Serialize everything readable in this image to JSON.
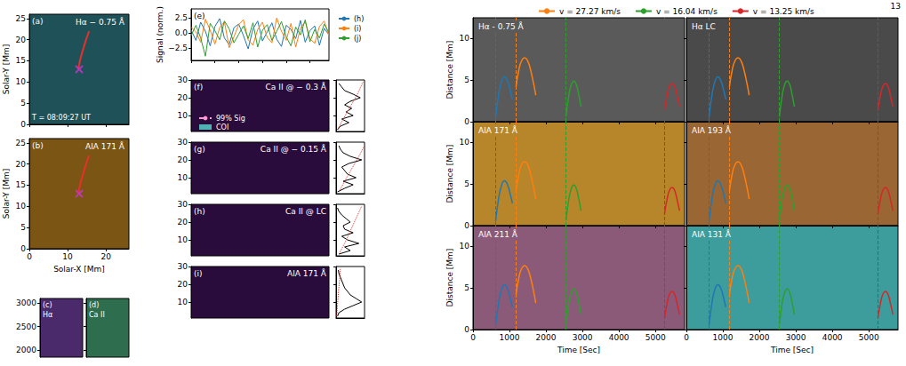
{
  "page_number": "13",
  "chart_data": [
    {
      "type": "image",
      "panel": "(a)",
      "title": "Hα − 0.75 Å",
      "annotation": "T = 08:09:27 UT",
      "ylabel": "Solar-Y [Mm]",
      "xlim": [
        0,
        26
      ],
      "ylim": [
        0,
        26
      ],
      "xticks": [
        0,
        10,
        20
      ],
      "yticks": [
        0,
        5,
        10,
        15,
        20,
        25
      ],
      "tick_labels": "y",
      "color": "#1f5258",
      "series": [
        {
          "type": "line",
          "color": "#e8302a",
          "x": [
            12.8,
            13.2,
            13.8,
            14.4,
            15.0,
            15.6
          ],
          "values": [
            13,
            15,
            17,
            18.8,
            20.5,
            22
          ]
        },
        {
          "type": "scatter",
          "marker": "x",
          "color": "#cc33cc",
          "x": [
            13
          ],
          "values": [
            13
          ]
        }
      ]
    },
    {
      "type": "image",
      "panel": "(b)",
      "title": "AIA 171 Å",
      "xlabel": "Solar-X [Mm]",
      "ylabel": "Solar-Y [Mm]",
      "xlim": [
        0,
        26
      ],
      "ylim": [
        0,
        26
      ],
      "xticks": [
        0,
        10,
        20
      ],
      "yticks": [
        0,
        5,
        10,
        15,
        20,
        25
      ],
      "tick_labels": true,
      "color": "#7a5514",
      "series": [
        {
          "type": "line",
          "color": "#e8302a",
          "x": [
            12.8,
            13.2,
            13.8,
            14.4,
            15.0,
            15.6
          ],
          "values": [
            13,
            15,
            17,
            18.8,
            20.5,
            22
          ]
        },
        {
          "type": "scatter",
          "marker": "x",
          "color": "#cc33cc",
          "x": [
            13
          ],
          "values": [
            13
          ]
        }
      ]
    },
    {
      "type": "image",
      "panel": "(c)",
      "title": "Hα",
      "ylim": [
        1850,
        3100
      ],
      "yticks": [
        2000,
        2500,
        3000
      ],
      "tick_labels": "y",
      "color": "#4a2a6a"
    },
    {
      "type": "image",
      "panel": "(d)",
      "title": "Ca II",
      "ylim": [
        1850,
        3100
      ],
      "yticks": [
        2000,
        2500,
        3000
      ],
      "tick_labels": false,
      "color": "#2e6e4e"
    },
    {
      "type": "line",
      "panel": "(e)",
      "ylabel": "Signal (norm.)",
      "xlim": [
        0,
        5800
      ],
      "xticks": [
        0,
        1000,
        2000,
        3000,
        4000,
        5000
      ],
      "ylim": [
        -4.5,
        4
      ],
      "yticks": [
        {
          "value": -2.5,
          "label": "−2.5"
        },
        {
          "value": 0,
          "label": "0.0"
        },
        {
          "value": 2.5,
          "label": "2.5"
        }
      ],
      "tick_labels": "y",
      "legend": "right",
      "x": [
        0,
        200,
        400,
        600,
        800,
        1000,
        1200,
        1400,
        1600,
        1800,
        2000,
        2200,
        2400,
        2600,
        2800,
        3000,
        3200,
        3400,
        3600,
        3800,
        4000,
        4200,
        4400,
        4600,
        4800,
        5000,
        5200,
        5400,
        5600,
        5800
      ],
      "series": [
        {
          "name": "(h)",
          "color": "#1f77b4",
          "values": [
            0.5,
            -1.2,
            1.8,
            0.3,
            -2.1,
            1.1,
            2.4,
            -0.8,
            -1.9,
            0.9,
            1.5,
            -0.4,
            -2.6,
            0.7,
            2.0,
            -1.3,
            0.2,
            1.7,
            -1.0,
            -2.2,
            1.3,
            0.6,
            -0.9,
            2.1,
            -1.5,
            0.4,
            1.2,
            -2.0,
            0.8,
            -0.3
          ]
        },
        {
          "name": "(i)",
          "color": "#ff7f0e",
          "values": [
            1.0,
            0.2,
            -1.5,
            2.3,
            0.5,
            -1.8,
            0.9,
            1.9,
            -2.4,
            -0.6,
            1.4,
            2.2,
            -1.1,
            -2.0,
            0.6,
            1.8,
            -0.7,
            -1.6,
            2.5,
            0.3,
            -1.2,
            1.6,
            -2.3,
            0.8,
            1.9,
            -0.9,
            -1.7,
            1.1,
            2.0,
            -0.5
          ]
        },
        {
          "name": "(j)",
          "color": "#2ca02c",
          "values": [
            -0.4,
            1.3,
            -0.8,
            -3.8,
            1.6,
            0.4,
            -1.1,
            2.0,
            0.7,
            -1.6,
            -0.2,
            1.2,
            -0.9,
            1.7,
            -2.3,
            0.5,
            1.4,
            -1.2,
            0.3,
            1.9,
            -0.6,
            -2.1,
            1.0,
            -0.3,
            2.2,
            -1.4,
            0.6,
            -0.8,
            1.5,
            0.1
          ]
        }
      ]
    },
    {
      "type": "wavelet",
      "panel": "(f)",
      "title": "Ca II @ − 0.3 Å",
      "ylim": [
        1,
        30
      ],
      "yticks": [
        10,
        20,
        30
      ],
      "tick_labels": "y",
      "color": "#2a0c3c",
      "legend": "lower left",
      "series": [
        {
          "name": "99% Sig",
          "color": "#ff9ad5",
          "line_style": "dashed"
        },
        {
          "name": "COI",
          "color": "#4fb3b3",
          "marker": "square"
        }
      ],
      "global_power": {
        "xlim": [
          0,
          1
        ],
        "color": "#000000",
        "x": [
          0.05,
          0.15,
          0.45,
          0.2,
          0.6,
          0.35,
          0.55,
          0.3,
          0.5,
          0.85,
          0.6,
          0.3,
          0.2,
          0.1
        ],
        "y": [
          2,
          4,
          6,
          8,
          10,
          12,
          14,
          16,
          18,
          20,
          22,
          24,
          26,
          28
        ]
      },
      "significance": {
        "color": "#e03030",
        "line_style": "dotted",
        "x": [
          0.05,
          0.25,
          0.5,
          0.75,
          0.95
        ],
        "y": [
          2,
          8,
          15,
          22,
          29
        ]
      }
    },
    {
      "type": "wavelet",
      "panel": "(g)",
      "title": "Ca II @ − 0.15 Å",
      "ylim": [
        1,
        30
      ],
      "yticks": [
        10,
        20,
        30
      ],
      "tick_labels": "y",
      "color": "#2a0c3c",
      "global_power": {
        "xlim": [
          0,
          1
        ],
        "color": "#000000",
        "x": [
          0.05,
          0.3,
          0.6,
          0.25,
          0.7,
          0.4,
          0.3,
          0.2,
          0.45,
          0.9,
          0.5,
          0.25,
          0.15,
          0.1
        ],
        "y": [
          2,
          4,
          6,
          8,
          10,
          12,
          14,
          16,
          18,
          20,
          22,
          24,
          26,
          28
        ]
      },
      "significance": {
        "color": "#e03030",
        "line_style": "dotted",
        "x": [
          0.1,
          0.3,
          0.55,
          0.8,
          1.0
        ],
        "y": [
          2,
          8,
          15,
          22,
          28
        ]
      }
    },
    {
      "type": "wavelet",
      "panel": "(h)",
      "title": "Ca II @ LC",
      "ylim": [
        1,
        30
      ],
      "yticks": [
        10,
        20,
        30
      ],
      "tick_labels": "y",
      "color": "#2a0c3c",
      "global_power": {
        "xlim": [
          0,
          1
        ],
        "color": "#000000",
        "x": [
          0.1,
          0.5,
          0.3,
          0.8,
          0.4,
          0.2,
          0.6,
          0.3,
          0.25,
          0.5,
          0.35,
          0.2,
          0.1,
          0.05
        ],
        "y": [
          2,
          4,
          6,
          8,
          10,
          12,
          14,
          16,
          18,
          20,
          22,
          24,
          26,
          28
        ]
      },
      "significance": {
        "color": "#e03030",
        "line_style": "dotted",
        "x": [
          0.1,
          0.3,
          0.5,
          0.7,
          0.9
        ],
        "y": [
          2,
          8,
          15,
          22,
          29
        ]
      }
    },
    {
      "type": "wavelet",
      "panel": "(i)",
      "title": "AIA 171 Å",
      "ylim": [
        1,
        30
      ],
      "yticks": [
        10,
        20,
        30
      ],
      "tick_labels": "y",
      "color": "#2a0c3c",
      "global_power": {
        "xlim": [
          0,
          1
        ],
        "color": "#000000",
        "x": [
          0.05,
          0.1,
          0.3,
          0.6,
          0.9,
          0.7,
          0.5,
          0.4,
          0.3,
          0.25,
          0.2,
          0.15,
          0.1,
          0.08
        ],
        "y": [
          2,
          4,
          6,
          8,
          10,
          12,
          14,
          16,
          18,
          20,
          22,
          24,
          26,
          28
        ]
      },
      "significance": {
        "color": "#e03030",
        "line_style": "dotted",
        "x": [
          0.02,
          0.05,
          0.08,
          0.12,
          0.15
        ],
        "y": [
          2,
          8,
          15,
          22,
          29
        ]
      }
    },
    {
      "type": "time_distance",
      "xlabel": "Time [Sec]",
      "ylabel": "Distance [Mm]",
      "xlim": [
        0,
        5800
      ],
      "xticks": [
        0,
        1000,
        2000,
        3000,
        4000,
        5000
      ],
      "ylim": [
        0,
        12.5
      ],
      "yticks": [
        0,
        5,
        10
      ],
      "legend": "top",
      "panels": [
        {
          "title": "Hα - 0.75 Å",
          "color": "#5a5a5a"
        },
        {
          "title": "Hα LC",
          "color": "#4a4a4a"
        },
        {
          "title": "AIA 171 Å",
          "color": "#b8862a"
        },
        {
          "title": "AIA 193 Å",
          "color": "#9a6634"
        },
        {
          "title": "AIA 211 Å",
          "color": "#8a5a78"
        },
        {
          "title": "AIA 131 Å",
          "color": "#3d9c9c"
        }
      ],
      "series": [
        {
          "color": "#1f77b4",
          "start_time": 620,
          "x": [
            620,
            700,
            780,
            860,
            940,
            1020,
            1080
          ],
          "values": [
            0.5,
            3.2,
            4.8,
            5.4,
            5.0,
            3.8,
            2.7
          ]
        },
        {
          "name": "v = 27.27 km/s",
          "color": "#ff7f0e",
          "start_time": 1180,
          "x": [
            1180,
            1260,
            1340,
            1420,
            1500,
            1580,
            1660,
            1720
          ],
          "values": [
            4.2,
            6.3,
            7.4,
            7.7,
            7.3,
            6.2,
            4.6,
            3.2
          ]
        },
        {
          "name": "v = 16.04 km/s",
          "color": "#2ca02c",
          "start_time": 2550,
          "x": [
            2550,
            2620,
            2690,
            2760,
            2830,
            2900,
            2960
          ],
          "values": [
            0.6,
            3.0,
            4.4,
            4.9,
            4.5,
            3.2,
            1.8
          ]
        },
        {
          "name": "v = 13.25 km/s",
          "color": "#d62728",
          "start_time": 5250,
          "x": [
            5250,
            5320,
            5390,
            5460,
            5530,
            5600,
            5660
          ],
          "values": [
            1.4,
            3.2,
            4.3,
            4.6,
            4.2,
            3.0,
            1.8
          ]
        }
      ]
    }
  ]
}
